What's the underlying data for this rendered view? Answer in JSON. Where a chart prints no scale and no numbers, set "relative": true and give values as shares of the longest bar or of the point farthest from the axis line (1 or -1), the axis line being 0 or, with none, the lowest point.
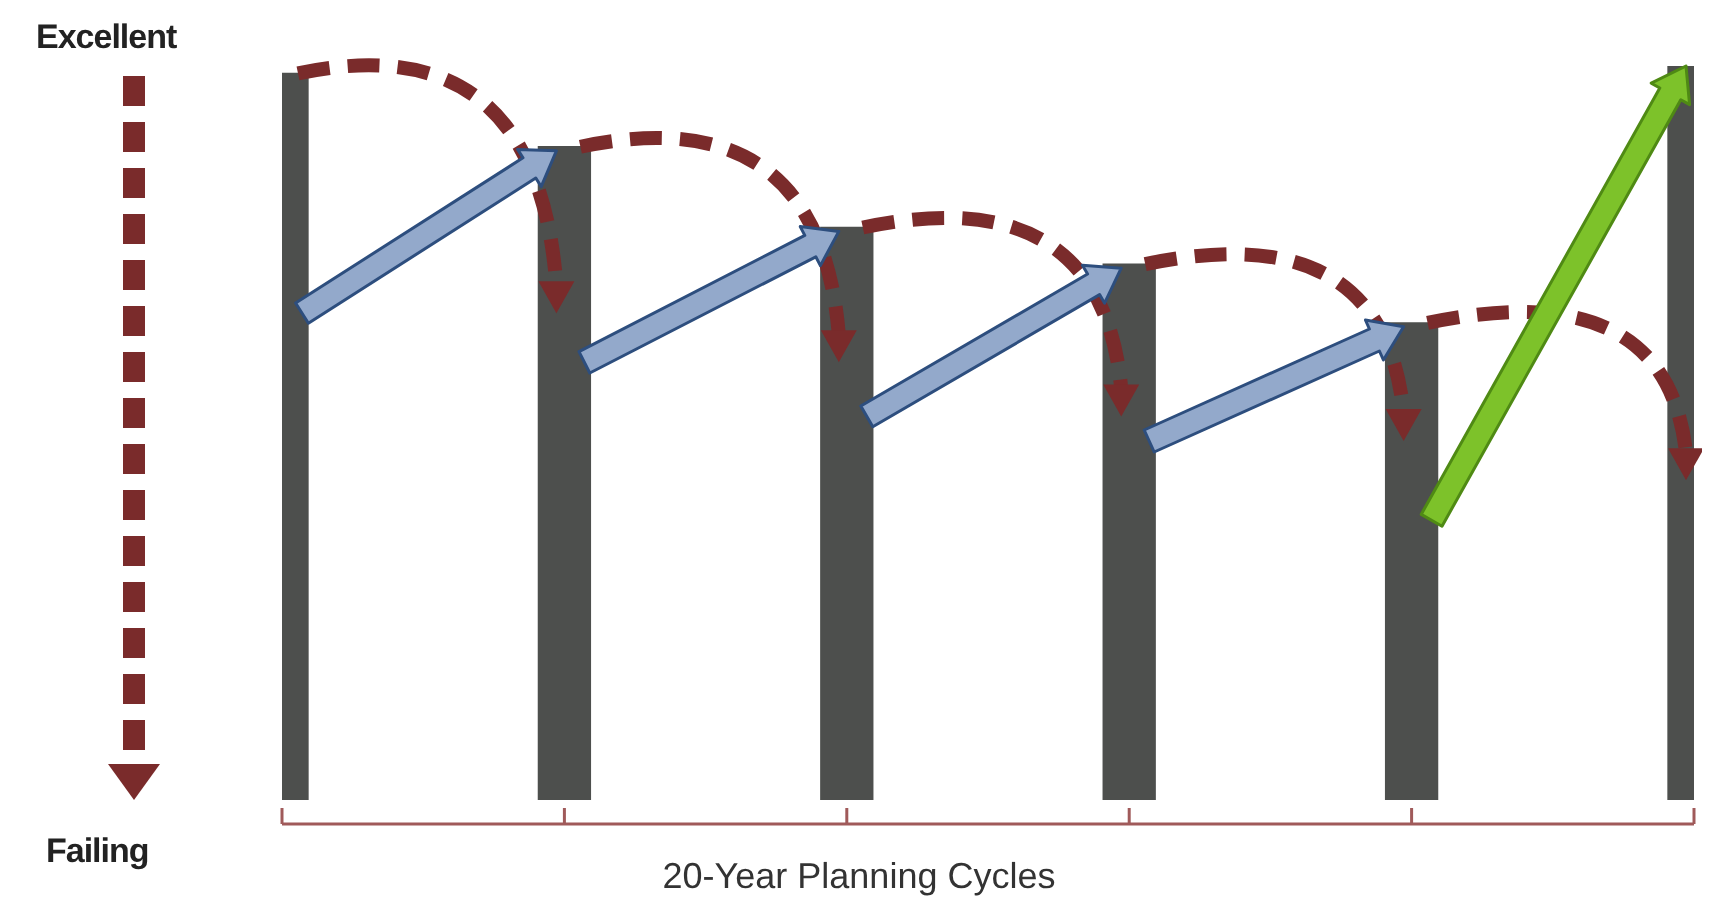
{
  "chart_data": {
    "type": "bar",
    "relative": true,
    "categories": [
      null,
      null,
      null,
      null,
      null,
      null
    ],
    "values": [
      0.99,
      0.89,
      0.78,
      0.73,
      0.65,
      1
    ],
    "color": "#4d4f4d",
    "xlabel": "20-Year Planning Cycles",
    "annotations": [
      "Excellent",
      "Failing"
    ]
  }
}
